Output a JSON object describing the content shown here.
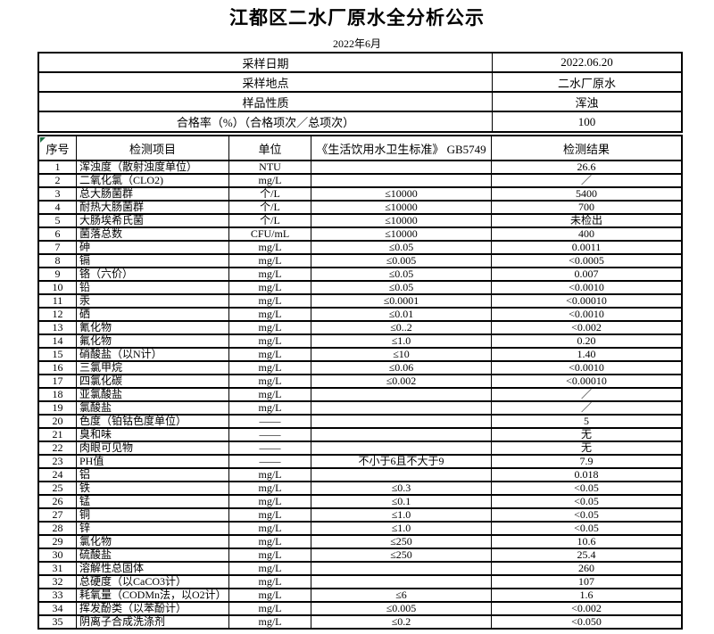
{
  "page": {
    "title": "江都区二水厂原水全分析公示",
    "subtitle": "2022年6月"
  },
  "info_table": {
    "rows": [
      {
        "label": "采样日期",
        "value": "2022.06.20"
      },
      {
        "label": "采样地点",
        "value": "二水厂原水"
      },
      {
        "label": "样品性质",
        "value": "浑浊"
      },
      {
        "label": "合格率（%）（合格项次／总项次）",
        "value": "100"
      }
    ]
  },
  "results_table": {
    "headers": [
      "序号",
      "检测项目",
      "单位",
      "《生活饮用水卫生标准》 GB5749",
      "检测结果"
    ],
    "rows": [
      {
        "no": "1",
        "item": "浑浊度（散射浊度单位）",
        "unit": "NTU",
        "standard": "",
        "result": "26.6"
      },
      {
        "no": "2",
        "item": "二氧化氯（CLO2)",
        "unit": "mg/L",
        "standard": "",
        "result": "／"
      },
      {
        "no": "3",
        "item": "总大肠菌群",
        "unit": "个/L",
        "standard": "≤10000",
        "result": "5400"
      },
      {
        "no": "4",
        "item": "耐热大肠菌群",
        "unit": "个/L",
        "standard": "≤10000",
        "result": "700"
      },
      {
        "no": "5",
        "item": "大肠埃希氏菌",
        "unit": "个/L",
        "standard": "≤10000",
        "result": "未检出"
      },
      {
        "no": "6",
        "item": "菌落总数",
        "unit": "CFU/mL",
        "standard": "≤10000",
        "result": "400"
      },
      {
        "no": "7",
        "item": "砷",
        "unit": "mg/L",
        "standard": "≤0.05",
        "result": "0.0011"
      },
      {
        "no": "8",
        "item": "镉",
        "unit": "mg/L",
        "standard": "≤0.005",
        "result": "<0.0005"
      },
      {
        "no": "9",
        "item": "铬（六价）",
        "unit": "mg/L",
        "standard": "≤0.05",
        "result": "0.007"
      },
      {
        "no": "10",
        "item": "铅",
        "unit": "mg/L",
        "standard": "≤0.05",
        "result": "<0.0010"
      },
      {
        "no": "11",
        "item": "汞",
        "unit": "mg/L",
        "standard": "≤0.0001",
        "result": "<0.00010"
      },
      {
        "no": "12",
        "item": "硒",
        "unit": "mg/L",
        "standard": "≤0.01",
        "result": "<0.0010"
      },
      {
        "no": "13",
        "item": "氰化物",
        "unit": "mg/L",
        "standard": "≤0..2",
        "result": "<0.002"
      },
      {
        "no": "14",
        "item": "氟化物",
        "unit": "mg/L",
        "standard": "≤1.0",
        "result": "0.20"
      },
      {
        "no": "15",
        "item": "硝酸盐（以N计）",
        "unit": "mg/L",
        "standard": "≤10",
        "result": "1.40"
      },
      {
        "no": "16",
        "item": "三氯甲烷",
        "unit": "mg/L",
        "standard": "≤0.06",
        "result": "<0.0010"
      },
      {
        "no": "17",
        "item": "四氯化碳",
        "unit": "mg/L",
        "standard": "≤0.002",
        "result": "<0.00010"
      },
      {
        "no": "18",
        "item": "亚氯酸盐",
        "unit": "mg/L",
        "standard": "",
        "result": "／"
      },
      {
        "no": "19",
        "item": "氯酸盐",
        "unit": "mg/L",
        "standard": "",
        "result": "／"
      },
      {
        "no": "20",
        "item": "色度（铂钴色度单位）",
        "unit": "——",
        "standard": "",
        "result": "5"
      },
      {
        "no": "21",
        "item": "臭和味",
        "unit": "——",
        "standard": "",
        "result": "无"
      },
      {
        "no": "22",
        "item": "肉眼可见物",
        "unit": "——",
        "standard": "",
        "result": "无"
      },
      {
        "no": "23",
        "item": "PH值",
        "unit": "——",
        "standard": "不小于6且不大于9",
        "result": "7.9"
      },
      {
        "no": "24",
        "item": "铝",
        "unit": "mg/L",
        "standard": "",
        "result": "0.018"
      },
      {
        "no": "25",
        "item": "铁",
        "unit": "mg/L",
        "standard": "≤0.3",
        "result": "<0.05"
      },
      {
        "no": "26",
        "item": "锰",
        "unit": "mg/L",
        "standard": "≤0.1",
        "result": "<0.05"
      },
      {
        "no": "27",
        "item": "铜",
        "unit": "mg/L",
        "standard": "≤1.0",
        "result": "<0.05"
      },
      {
        "no": "28",
        "item": "锌",
        "unit": "mg/L",
        "standard": "≤1.0",
        "result": "<0.05"
      },
      {
        "no": "29",
        "item": "氯化物",
        "unit": "mg/L",
        "standard": "≤250",
        "result": "10.6"
      },
      {
        "no": "30",
        "item": "硫酸盐",
        "unit": "mg/L",
        "standard": "≤250",
        "result": "25.4"
      },
      {
        "no": "31",
        "item": "溶解性总固体",
        "unit": "mg/L",
        "standard": "",
        "result": "260"
      },
      {
        "no": "32",
        "item": "总硬度（以CaCO3计）",
        "unit": "mg/L",
        "standard": "",
        "result": "107"
      },
      {
        "no": "33",
        "item": "耗氧量（CODMn法，以O2计）",
        "unit": "mg/L",
        "standard": "≤6",
        "result": "1.6"
      },
      {
        "no": "34",
        "item": "挥发酚类（以苯酚计）",
        "unit": "mg/L",
        "standard": "≤0.005",
        "result": "<0.002"
      },
      {
        "no": "35",
        "item": "阴离子合成洗涤剂",
        "unit": "mg/L",
        "standard": "≤0.2",
        "result": "<0.050"
      }
    ]
  }
}
